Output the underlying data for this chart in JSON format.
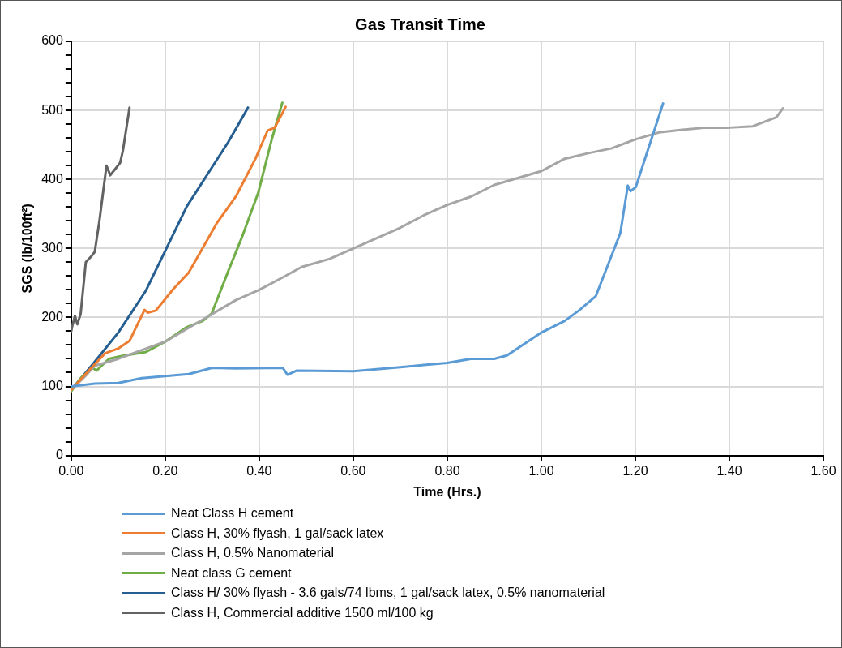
{
  "chart_data": {
    "type": "line",
    "title": "Gas Transit Time",
    "xlabel": "Time (Hrs.)",
    "ylabel": "SGS (lb/100ft²)",
    "xlim": [
      0,
      1.6
    ],
    "xticks": [
      {
        "value": 0,
        "label": "0.00"
      },
      {
        "value": 0.2,
        "label": "0.20"
      },
      {
        "value": 0.4,
        "label": "0.40"
      },
      {
        "value": 0.6,
        "label": "0.60"
      },
      {
        "value": 0.8,
        "label": "0.80"
      },
      {
        "value": 1.0,
        "label": "1.00"
      },
      {
        "value": 1.2,
        "label": "1.20"
      },
      {
        "value": 1.4,
        "label": "1.40"
      },
      {
        "value": 1.6,
        "label": "1.60"
      }
    ],
    "ylim": [
      0,
      600
    ],
    "yticks": [
      0,
      {
        "value": 20,
        "label": null
      },
      {
        "value": 40,
        "label": null
      },
      {
        "value": 60,
        "label": null
      },
      {
        "value": 80,
        "label": null
      },
      100,
      {
        "value": 120,
        "label": null
      },
      {
        "value": 140,
        "label": null
      },
      {
        "value": 160,
        "label": null
      },
      {
        "value": 180,
        "label": null
      },
      200,
      {
        "value": 220,
        "label": null
      },
      {
        "value": 240,
        "label": null
      },
      {
        "value": 260,
        "label": null
      },
      {
        "value": 280,
        "label": null
      },
      300,
      {
        "value": 320,
        "label": null
      },
      {
        "value": 340,
        "label": null
      },
      {
        "value": 360,
        "label": null
      },
      {
        "value": 380,
        "label": null
      },
      400,
      {
        "value": 420,
        "label": null
      },
      {
        "value": 440,
        "label": null
      },
      {
        "value": 460,
        "label": null
      },
      {
        "value": 480,
        "label": null
      },
      500,
      {
        "value": 520,
        "label": null
      },
      {
        "value": 540,
        "label": null
      },
      {
        "value": 560,
        "label": null
      },
      {
        "value": 580,
        "label": null
      },
      600
    ],
    "grid": true,
    "legend": "bottom",
    "marker": "none",
    "line_style": "solid",
    "series": [
      {
        "name": "Neat Class H cement",
        "color": "#5b9bd5",
        "x": [
          0,
          0.05,
          0.1,
          0.15,
          0.2,
          0.25,
          0.3,
          0.35,
          0.45,
          0.46,
          0.48,
          0.6,
          0.7,
          0.75,
          0.8,
          0.85,
          0.9,
          0.927,
          0.96,
          1.0,
          1.05,
          1.08,
          1.116,
          1.168,
          1.184,
          1.19,
          1.201,
          1.259
        ],
        "values": [
          100,
          104,
          105,
          112,
          115,
          118,
          127,
          126,
          127,
          117,
          123,
          122,
          128,
          131,
          134,
          140,
          140,
          145,
          160,
          178,
          195,
          210,
          231,
          322,
          391,
          383,
          389,
          510
        ]
      },
      {
        "name": "Class H, 30% flyash, 1 gal/sack latex",
        "color": "#ed7d31",
        "x": [
          0,
          0.04,
          0.072,
          0.1,
          0.124,
          0.141,
          0.156,
          0.163,
          0.18,
          0.217,
          0.25,
          0.31,
          0.35,
          0.392,
          0.418,
          0.433,
          0.456
        ],
        "values": [
          95,
          125,
          148,
          155,
          166,
          190,
          211,
          207,
          210,
          241,
          265,
          337,
          375,
          430,
          471,
          475,
          505
        ]
      },
      {
        "name": "Class H, 0.5% Nanomaterial",
        "color": "#a5a5a5",
        "x": [
          0,
          0.03,
          0.05,
          0.1,
          0.2,
          0.3,
          0.35,
          0.4,
          0.45,
          0.49,
          0.55,
          0.6,
          0.65,
          0.7,
          0.75,
          0.8,
          0.85,
          0.9,
          0.95,
          1.0,
          1.05,
          1.1,
          1.15,
          1.2,
          1.25,
          1.3,
          1.35,
          1.4,
          1.45,
          1.5,
          1.514
        ],
        "values": [
          95,
          115,
          130,
          140,
          165,
          205,
          225,
          240,
          258,
          273,
          285,
          300,
          315,
          330,
          348,
          363,
          375,
          392,
          402,
          412,
          430,
          438,
          445,
          458,
          468,
          472,
          475,
          475,
          477,
          490,
          503
        ]
      },
      {
        "name": "Neat class G cement",
        "color": "#70ad47",
        "x": [
          0,
          0.02,
          0.045,
          0.054,
          0.08,
          0.107,
          0.159,
          0.2,
          0.246,
          0.28,
          0.299,
          0.334,
          0.363,
          0.398,
          0.427,
          0.449
        ],
        "values": [
          93,
          112,
          127,
          123,
          140,
          144,
          150,
          165,
          186,
          195,
          206,
          267,
          316,
          381,
          459,
          511
        ]
      },
      {
        "name": "Class H/ 30% flyash - 3.6 gals/74 lbms, 1 gal/sack latex, 0.5% nanomaterial",
        "color": "#255e91",
        "x": [
          0,
          0.042,
          0.1,
          0.159,
          0.246,
          0.334,
          0.376
        ],
        "values": [
          95,
          129,
          178,
          239,
          361,
          454,
          504
        ]
      },
      {
        "name": "Class H, Commercial additive 1500 ml/100 kg",
        "color": "#636363",
        "x": [
          0,
          0.002,
          0.008,
          0.013,
          0.02,
          0.031,
          0.042,
          0.05,
          0.06,
          0.075,
          0.083,
          0.104,
          0.11,
          0.124
        ],
        "values": [
          180,
          187,
          202,
          190,
          205,
          280,
          288,
          295,
          340,
          420,
          406,
          424,
          442,
          504
        ]
      }
    ]
  }
}
